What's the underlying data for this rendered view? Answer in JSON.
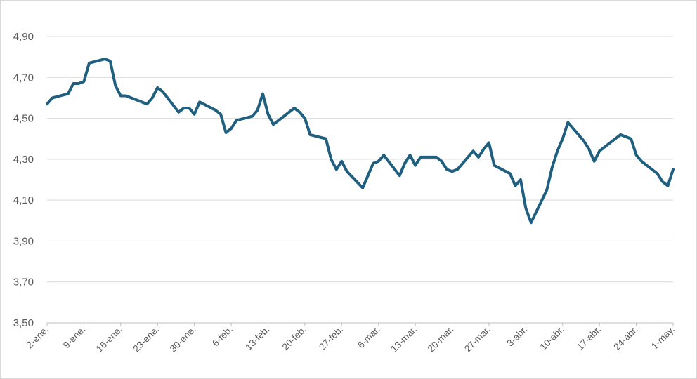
{
  "chart_data": {
    "type": "line",
    "title": "",
    "xlabel": "",
    "ylabel": "",
    "ylim": [
      3.5,
      4.9
    ],
    "y_ticks": [
      "3,50",
      "3,70",
      "3,90",
      "4,10",
      "4,30",
      "4,50",
      "4,70",
      "4,90"
    ],
    "x_tick_labels": [
      "2-ene.",
      "9-ene.",
      "16-ene.",
      "23-ene.",
      "30-ene.",
      "6-feb.",
      "13-feb.",
      "20-feb.",
      "27-feb.",
      "6-mar.",
      "13-mar.",
      "20-mar.",
      "27-mar.",
      "3-abr.",
      "10-abr.",
      "17-abr.",
      "24-abr.",
      "1-may."
    ],
    "grid": true,
    "legend": "none",
    "line_color": "#1f5f7f",
    "series": [
      {
        "points": [
          [
            0,
            4.57
          ],
          [
            1,
            4.6
          ],
          [
            4,
            4.62
          ],
          [
            5,
            4.67
          ],
          [
            6,
            4.67
          ],
          [
            7,
            4.68
          ],
          [
            8,
            4.77
          ],
          [
            11,
            4.79
          ],
          [
            12,
            4.78
          ],
          [
            13,
            4.66
          ],
          [
            14,
            4.61
          ],
          [
            15,
            4.61
          ],
          [
            19,
            4.57
          ],
          [
            20,
            4.6
          ],
          [
            21,
            4.65
          ],
          [
            22,
            4.63
          ],
          [
            25,
            4.53
          ],
          [
            26,
            4.55
          ],
          [
            27,
            4.55
          ],
          [
            28,
            4.52
          ],
          [
            29,
            4.58
          ],
          [
            32,
            4.54
          ],
          [
            33,
            4.52
          ],
          [
            34,
            4.43
          ],
          [
            35,
            4.45
          ],
          [
            36,
            4.49
          ],
          [
            39,
            4.51
          ],
          [
            40,
            4.54
          ],
          [
            41,
            4.62
          ],
          [
            42,
            4.52
          ],
          [
            43,
            4.47
          ],
          [
            47,
            4.55
          ],
          [
            48,
            4.53
          ],
          [
            49,
            4.5
          ],
          [
            50,
            4.42
          ],
          [
            53,
            4.4
          ],
          [
            54,
            4.3
          ],
          [
            55,
            4.25
          ],
          [
            56,
            4.29
          ],
          [
            57,
            4.24
          ],
          [
            60,
            4.16
          ],
          [
            61,
            4.22
          ],
          [
            62,
            4.28
          ],
          [
            63,
            4.29
          ],
          [
            64,
            4.32
          ],
          [
            67,
            4.22
          ],
          [
            68,
            4.28
          ],
          [
            69,
            4.32
          ],
          [
            70,
            4.27
          ],
          [
            71,
            4.31
          ],
          [
            74,
            4.31
          ],
          [
            75,
            4.29
          ],
          [
            76,
            4.25
          ],
          [
            77,
            4.24
          ],
          [
            78,
            4.25
          ],
          [
            81,
            4.34
          ],
          [
            82,
            4.31
          ],
          [
            83,
            4.35
          ],
          [
            84,
            4.38
          ],
          [
            85,
            4.27
          ],
          [
            88,
            4.23
          ],
          [
            89,
            4.17
          ],
          [
            90,
            4.2
          ],
          [
            91,
            4.06
          ],
          [
            92,
            3.99
          ],
          [
            95,
            4.15
          ],
          [
            96,
            4.26
          ],
          [
            97,
            4.34
          ],
          [
            98,
            4.4
          ],
          [
            99,
            4.48
          ],
          [
            102,
            4.39
          ],
          [
            103,
            4.35
          ],
          [
            104,
            4.29
          ],
          [
            105,
            4.34
          ],
          [
            109,
            4.42
          ],
          [
            111,
            4.4
          ],
          [
            112,
            4.32
          ],
          [
            113,
            4.29
          ],
          [
            116,
            4.23
          ],
          [
            117,
            4.19
          ],
          [
            118,
            4.17
          ],
          [
            119,
            4.25
          ]
        ]
      }
    ]
  }
}
